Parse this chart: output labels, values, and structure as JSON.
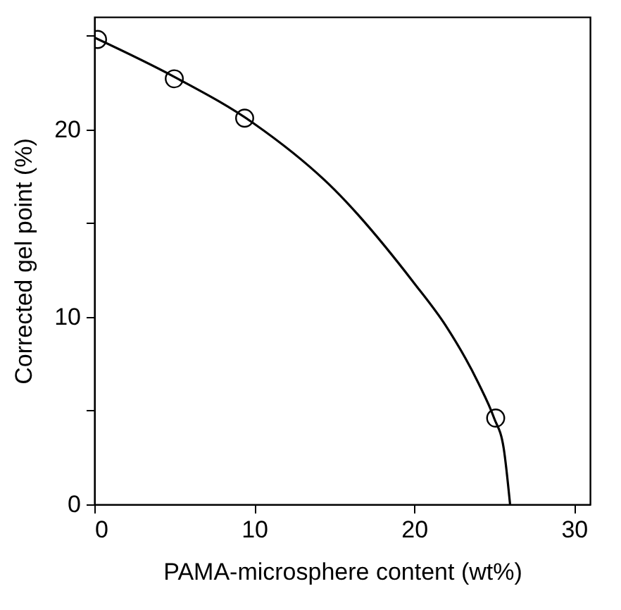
{
  "chart_data": {
    "type": "scatter",
    "xlabel": "PAMA-microsphere content (wt%)",
    "ylabel": "Corrected gel point (%)",
    "xlim": [
      0,
      31
    ],
    "xticks": [
      0,
      10,
      20,
      30
    ],
    "ylim": [
      0,
      26
    ],
    "yticks": [
      0,
      {
        "value": 5,
        "label": null
      },
      10,
      {
        "value": 15,
        "label": null
      },
      20,
      {
        "value": 25,
        "label": null
      }
    ],
    "grid": false,
    "marker": "circle",
    "series": [
      {
        "color": "#000000",
        "x": [
          0.2,
          5.0,
          9.4,
          25.1
        ],
        "values": [
          24.8,
          22.7,
          20.6,
          4.6
        ]
      },
      {
        "type": "line",
        "color": "#000000",
        "marker": "none",
        "x": [
          0,
          5,
          10,
          15,
          20,
          22,
          24,
          25,
          25.6,
          26
        ],
        "values": [
          24.9,
          22.8,
          20.3,
          16.8,
          11.8,
          9.5,
          6.5,
          4.6,
          3.0,
          0
        ]
      }
    ]
  }
}
